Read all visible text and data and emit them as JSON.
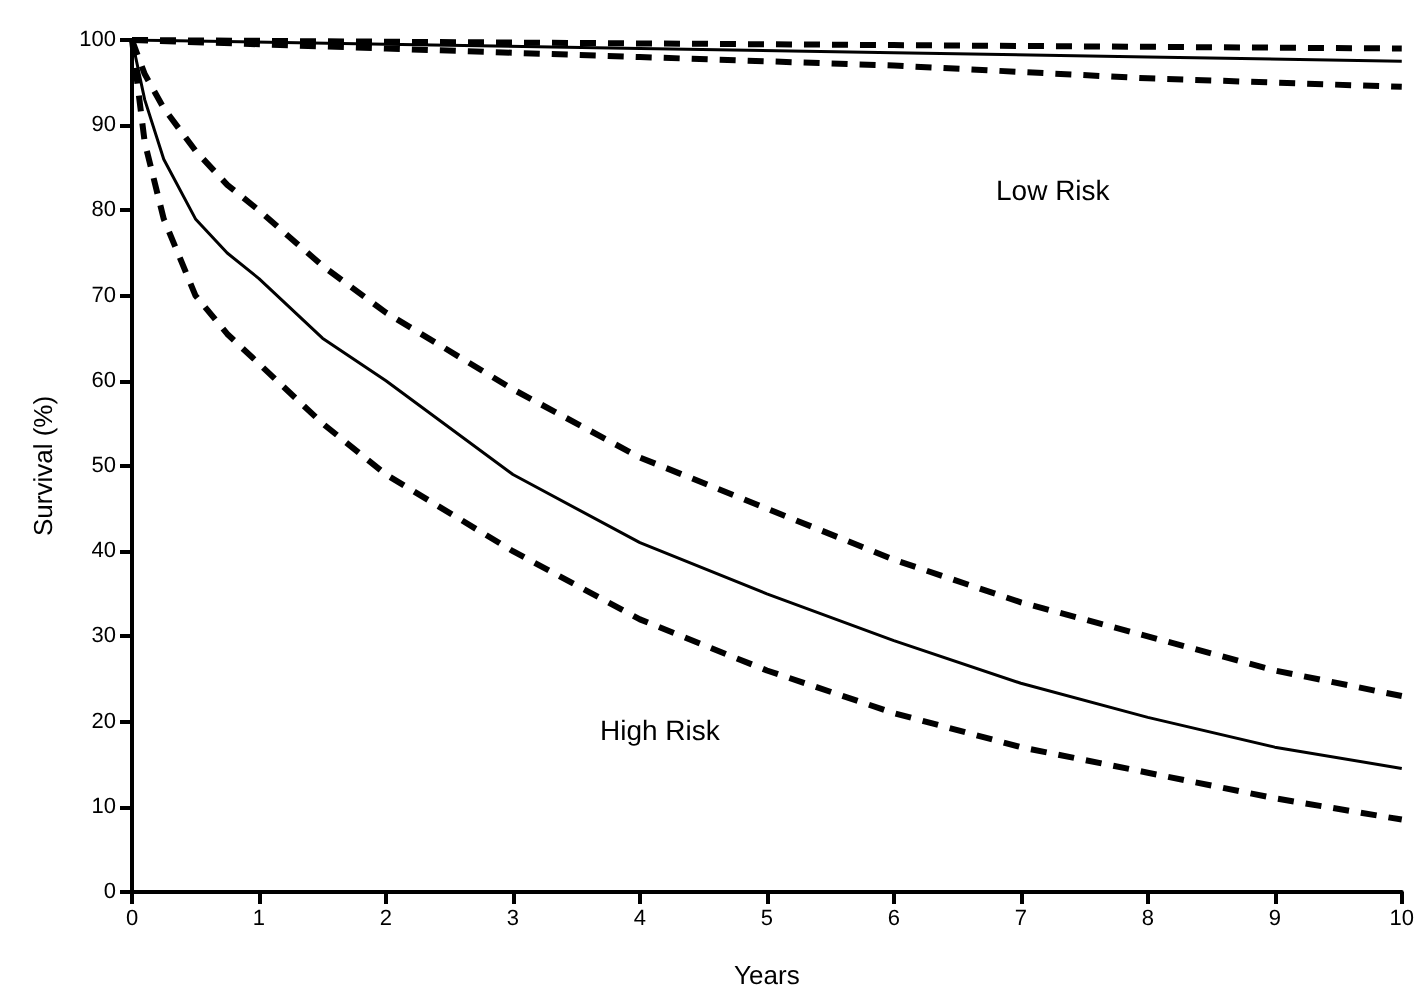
{
  "chart_data": {
    "type": "line",
    "xlabel": "Years",
    "ylabel": "Survival (%)",
    "xlim": [
      0,
      10
    ],
    "xticks": [
      0,
      1,
      2,
      3,
      4,
      5,
      6,
      7,
      8,
      9,
      10
    ],
    "ylim": [
      0,
      100
    ],
    "yticks": [
      0,
      10,
      20,
      30,
      40,
      50,
      60,
      70,
      80,
      90,
      100
    ],
    "marker": "none",
    "grid": false,
    "annotations": [
      "Low Risk",
      "High Risk"
    ],
    "series": [
      {
        "color": "#000000",
        "line_style": "solid",
        "x": [
          0,
          2,
          4,
          6,
          8,
          10
        ],
        "values": [
          100,
          99.5,
          99,
          98.5,
          98,
          97.5
        ]
      },
      {
        "color": "#000000",
        "line_style": "dashed",
        "x": [
          0,
          2,
          4,
          6,
          8,
          10
        ],
        "values": [
          100,
          99.8,
          99.6,
          99.4,
          99.2,
          99
        ]
      },
      {
        "color": "#000000",
        "line_style": "dashed",
        "x": [
          0,
          2,
          4,
          6,
          8,
          10
        ],
        "values": [
          100,
          99,
          98,
          97,
          95.5,
          94.5
        ]
      },
      {
        "color": "#000000",
        "line_style": "solid",
        "x": [
          0,
          0.1,
          0.25,
          0.5,
          0.75,
          1,
          1.5,
          2,
          3,
          4,
          5,
          6,
          7,
          8,
          9,
          10
        ],
        "values": [
          100,
          93,
          86,
          79,
          75,
          72,
          65,
          60,
          49,
          41,
          35,
          29.5,
          24.5,
          20.5,
          17,
          14.5
        ]
      },
      {
        "color": "#000000",
        "line_style": "dashed",
        "x": [
          0,
          0.1,
          0.25,
          0.5,
          0.75,
          1,
          1.5,
          2,
          3,
          4,
          5,
          6,
          7,
          8,
          9,
          10
        ],
        "values": [
          100,
          96,
          92,
          87,
          83,
          80,
          73.5,
          68,
          59,
          51,
          45,
          39,
          34,
          30,
          26,
          23
        ]
      },
      {
        "color": "#000000",
        "line_style": "dashed",
        "x": [
          0,
          0.1,
          0.25,
          0.5,
          0.75,
          1,
          1.5,
          2,
          3,
          4,
          5,
          6,
          7,
          8,
          9,
          10
        ],
        "values": [
          100,
          88,
          79,
          70,
          65.5,
          62,
          55,
          49,
          40,
          32,
          26,
          21,
          17,
          14,
          11,
          8.5
        ]
      }
    ]
  }
}
